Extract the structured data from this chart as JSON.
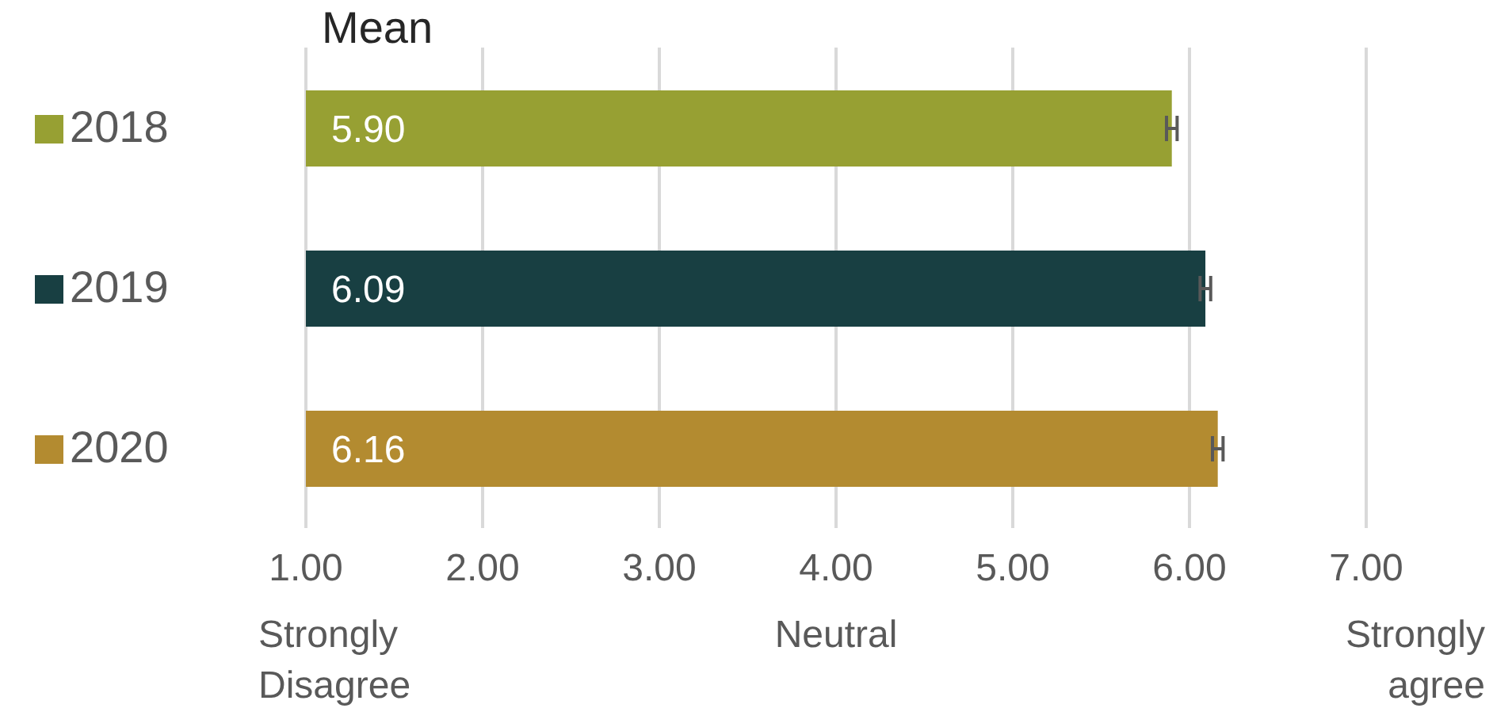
{
  "chart_data": {
    "type": "bar",
    "orientation": "horizontal",
    "title": "Mean",
    "categories": [
      "2018",
      "2019",
      "2020"
    ],
    "values": [
      5.9,
      6.09,
      6.16
    ],
    "value_labels": [
      "5.90",
      "6.09",
      "6.16"
    ],
    "colors": [
      "#97a033",
      "#183f42",
      "#b38b30"
    ],
    "errors": [
      0.03,
      0.03,
      0.03
    ],
    "xlim": [
      1,
      7
    ],
    "xticks": [
      {
        "value": 1,
        "label": "1.00"
      },
      {
        "value": 2,
        "label": "2.00"
      },
      {
        "value": 3,
        "label": "3.00"
      },
      {
        "value": 4,
        "label": "4.00"
      },
      {
        "value": 5,
        "label": "5.00"
      },
      {
        "value": 6,
        "label": "6.00"
      },
      {
        "value": 7,
        "label": "7.00"
      }
    ],
    "grid": "x",
    "annotations": [
      "Strongly Disagree",
      "Neutral",
      "Strongly agree"
    ]
  }
}
